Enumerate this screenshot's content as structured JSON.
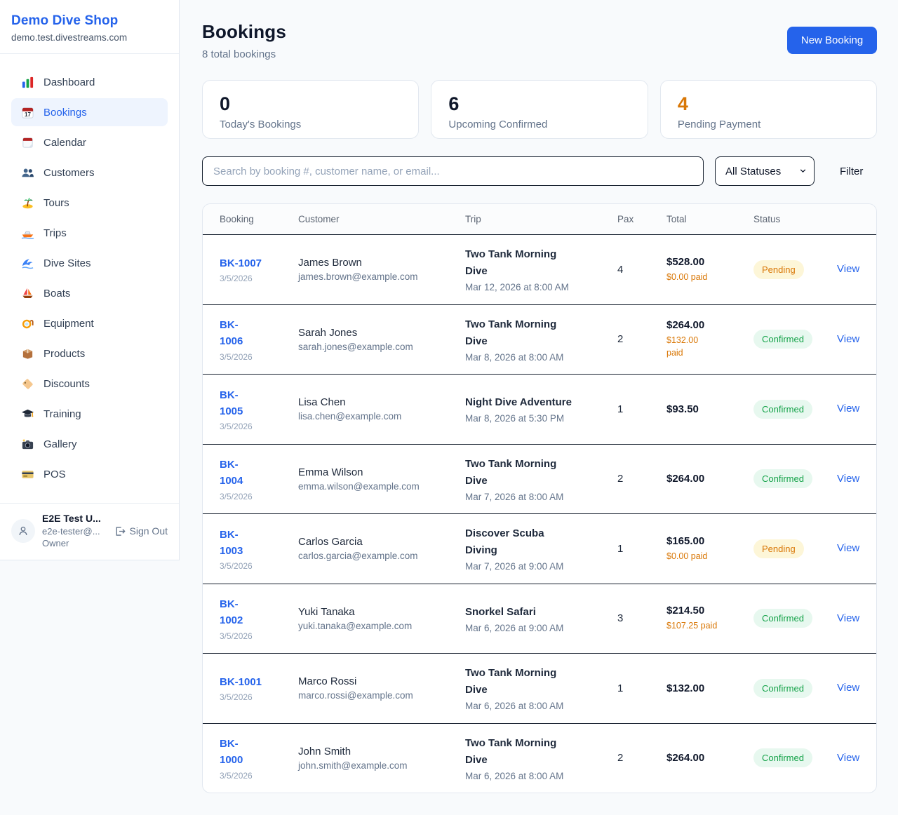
{
  "theme": {
    "accent_blue": "#2563eb",
    "orange": "#d97706",
    "green": "#16a34a",
    "pending_badge_bg": "#fdf6d8",
    "confirmed_badge_bg": "#e7f8ef",
    "page_bg": "#f8fafc",
    "card_border": "#e2e8f0",
    "dark_divider": "#16202e"
  },
  "sidebar": {
    "brand": {
      "name": "Demo Dive Shop",
      "domain": "demo.test.divestreams.com"
    },
    "nav": [
      {
        "label": "Dashboard",
        "icon": "bar-chart-icon",
        "state": ""
      },
      {
        "label": "Bookings",
        "icon": "calendar-date-icon",
        "state": "active"
      },
      {
        "label": "Calendar",
        "icon": "tearoff-calendar-icon",
        "state": ""
      },
      {
        "label": "Customers",
        "icon": "users-icon",
        "state": ""
      },
      {
        "label": "Tours",
        "icon": "island-icon",
        "state": ""
      },
      {
        "label": "Trips",
        "icon": "speedboat-icon",
        "state": ""
      },
      {
        "label": "Dive Sites",
        "icon": "wave-icon",
        "state": ""
      },
      {
        "label": "Boats",
        "icon": "sailboat-icon",
        "state": ""
      },
      {
        "label": "Equipment",
        "icon": "diving-mask-icon",
        "state": ""
      },
      {
        "label": "Products",
        "icon": "package-icon",
        "state": ""
      },
      {
        "label": "Discounts",
        "icon": "tag-icon",
        "state": ""
      },
      {
        "label": "Training",
        "icon": "graduation-cap-icon",
        "state": ""
      },
      {
        "label": "Gallery",
        "icon": "camera-icon",
        "state": ""
      },
      {
        "label": "POS",
        "icon": "credit-card-icon",
        "state": ""
      }
    ],
    "user": {
      "name": "E2E Test U...",
      "email": "e2e-tester@...",
      "role": "Owner",
      "sign_out_label": "Sign Out"
    }
  },
  "header": {
    "title": "Bookings",
    "subtitle": "8 total bookings",
    "new_booking_label": "New Booking"
  },
  "stats": [
    {
      "value": "0",
      "label": "Today's Bookings",
      "accent": ""
    },
    {
      "value": "6",
      "label": "Upcoming Confirmed",
      "accent": ""
    },
    {
      "value": "4",
      "label": "Pending Payment",
      "accent": "orange"
    }
  ],
  "filters": {
    "search_placeholder": "Search by booking #, customer name, or email...",
    "status_value": "All Statuses",
    "filter_label": "Filter"
  },
  "table": {
    "columns": {
      "booking": "Booking",
      "customer": "Customer",
      "trip": "Trip",
      "pax": "Pax",
      "total": "Total",
      "status": "Status"
    },
    "rows": [
      {
        "id_display": "BK-1007",
        "date": "3/5/2026",
        "customer": "James Brown",
        "email": "james.brown@example.com",
        "trip_display": "Two Tank Morning\nDive",
        "trip_time": "Mar 12, 2026 at 8:00 AM",
        "pax": "4",
        "total": "$528.00",
        "paid": "$0.00 paid",
        "status": "Pending",
        "view_label": "View"
      },
      {
        "id_display": "BK-\n1006",
        "date": "3/5/2026",
        "customer": "Sarah Jones",
        "email": "sarah.jones@example.com",
        "trip_display": "Two Tank Morning\nDive",
        "trip_time": "Mar 8, 2026 at 8:00 AM",
        "pax": "2",
        "total": "$264.00",
        "paid": "$132.00\npaid",
        "status": "Confirmed",
        "view_label": "View"
      },
      {
        "id_display": "BK-\n1005",
        "date": "3/5/2026",
        "customer": "Lisa Chen",
        "email": "lisa.chen@example.com",
        "trip_display": "Night Dive Adventure",
        "trip_time": "Mar 8, 2026 at 5:30 PM",
        "pax": "1",
        "total": "$93.50",
        "paid": "",
        "status": "Confirmed",
        "view_label": "View"
      },
      {
        "id_display": "BK-\n1004",
        "date": "3/5/2026",
        "customer": "Emma Wilson",
        "email": "emma.wilson@example.com",
        "trip_display": "Two Tank Morning\nDive",
        "trip_time": "Mar 7, 2026 at 8:00 AM",
        "pax": "2",
        "total": "$264.00",
        "paid": "",
        "status": "Confirmed",
        "view_label": "View"
      },
      {
        "id_display": "BK-\n1003",
        "date": "3/5/2026",
        "customer": "Carlos Garcia",
        "email": "carlos.garcia@example.com",
        "trip_display": "Discover Scuba\nDiving",
        "trip_time": "Mar 7, 2026 at 9:00 AM",
        "pax": "1",
        "total": "$165.00",
        "paid": "$0.00 paid",
        "status": "Pending",
        "view_label": "View"
      },
      {
        "id_display": "BK-\n1002",
        "date": "3/5/2026",
        "customer": "Yuki Tanaka",
        "email": "yuki.tanaka@example.com",
        "trip_display": "Snorkel Safari",
        "trip_time": "Mar 6, 2026 at 9:00 AM",
        "pax": "3",
        "total": "$214.50",
        "paid": "$107.25 paid",
        "status": "Confirmed",
        "view_label": "View"
      },
      {
        "id_display": "BK-1001",
        "date": "3/5/2026",
        "customer": "Marco Rossi",
        "email": "marco.rossi@example.com",
        "trip_display": "Two Tank Morning\nDive",
        "trip_time": "Mar 6, 2026 at 8:00 AM",
        "pax": "1",
        "total": "$132.00",
        "paid": "",
        "status": "Confirmed",
        "view_label": "View"
      },
      {
        "id_display": "BK-\n1000",
        "date": "3/5/2026",
        "customer": "John Smith",
        "email": "john.smith@example.com",
        "trip_display": "Two Tank Morning\nDive",
        "trip_time": "Mar 6, 2026 at 8:00 AM",
        "pax": "2",
        "total": "$264.00",
        "paid": "",
        "status": "Confirmed",
        "view_label": "View"
      }
    ]
  }
}
